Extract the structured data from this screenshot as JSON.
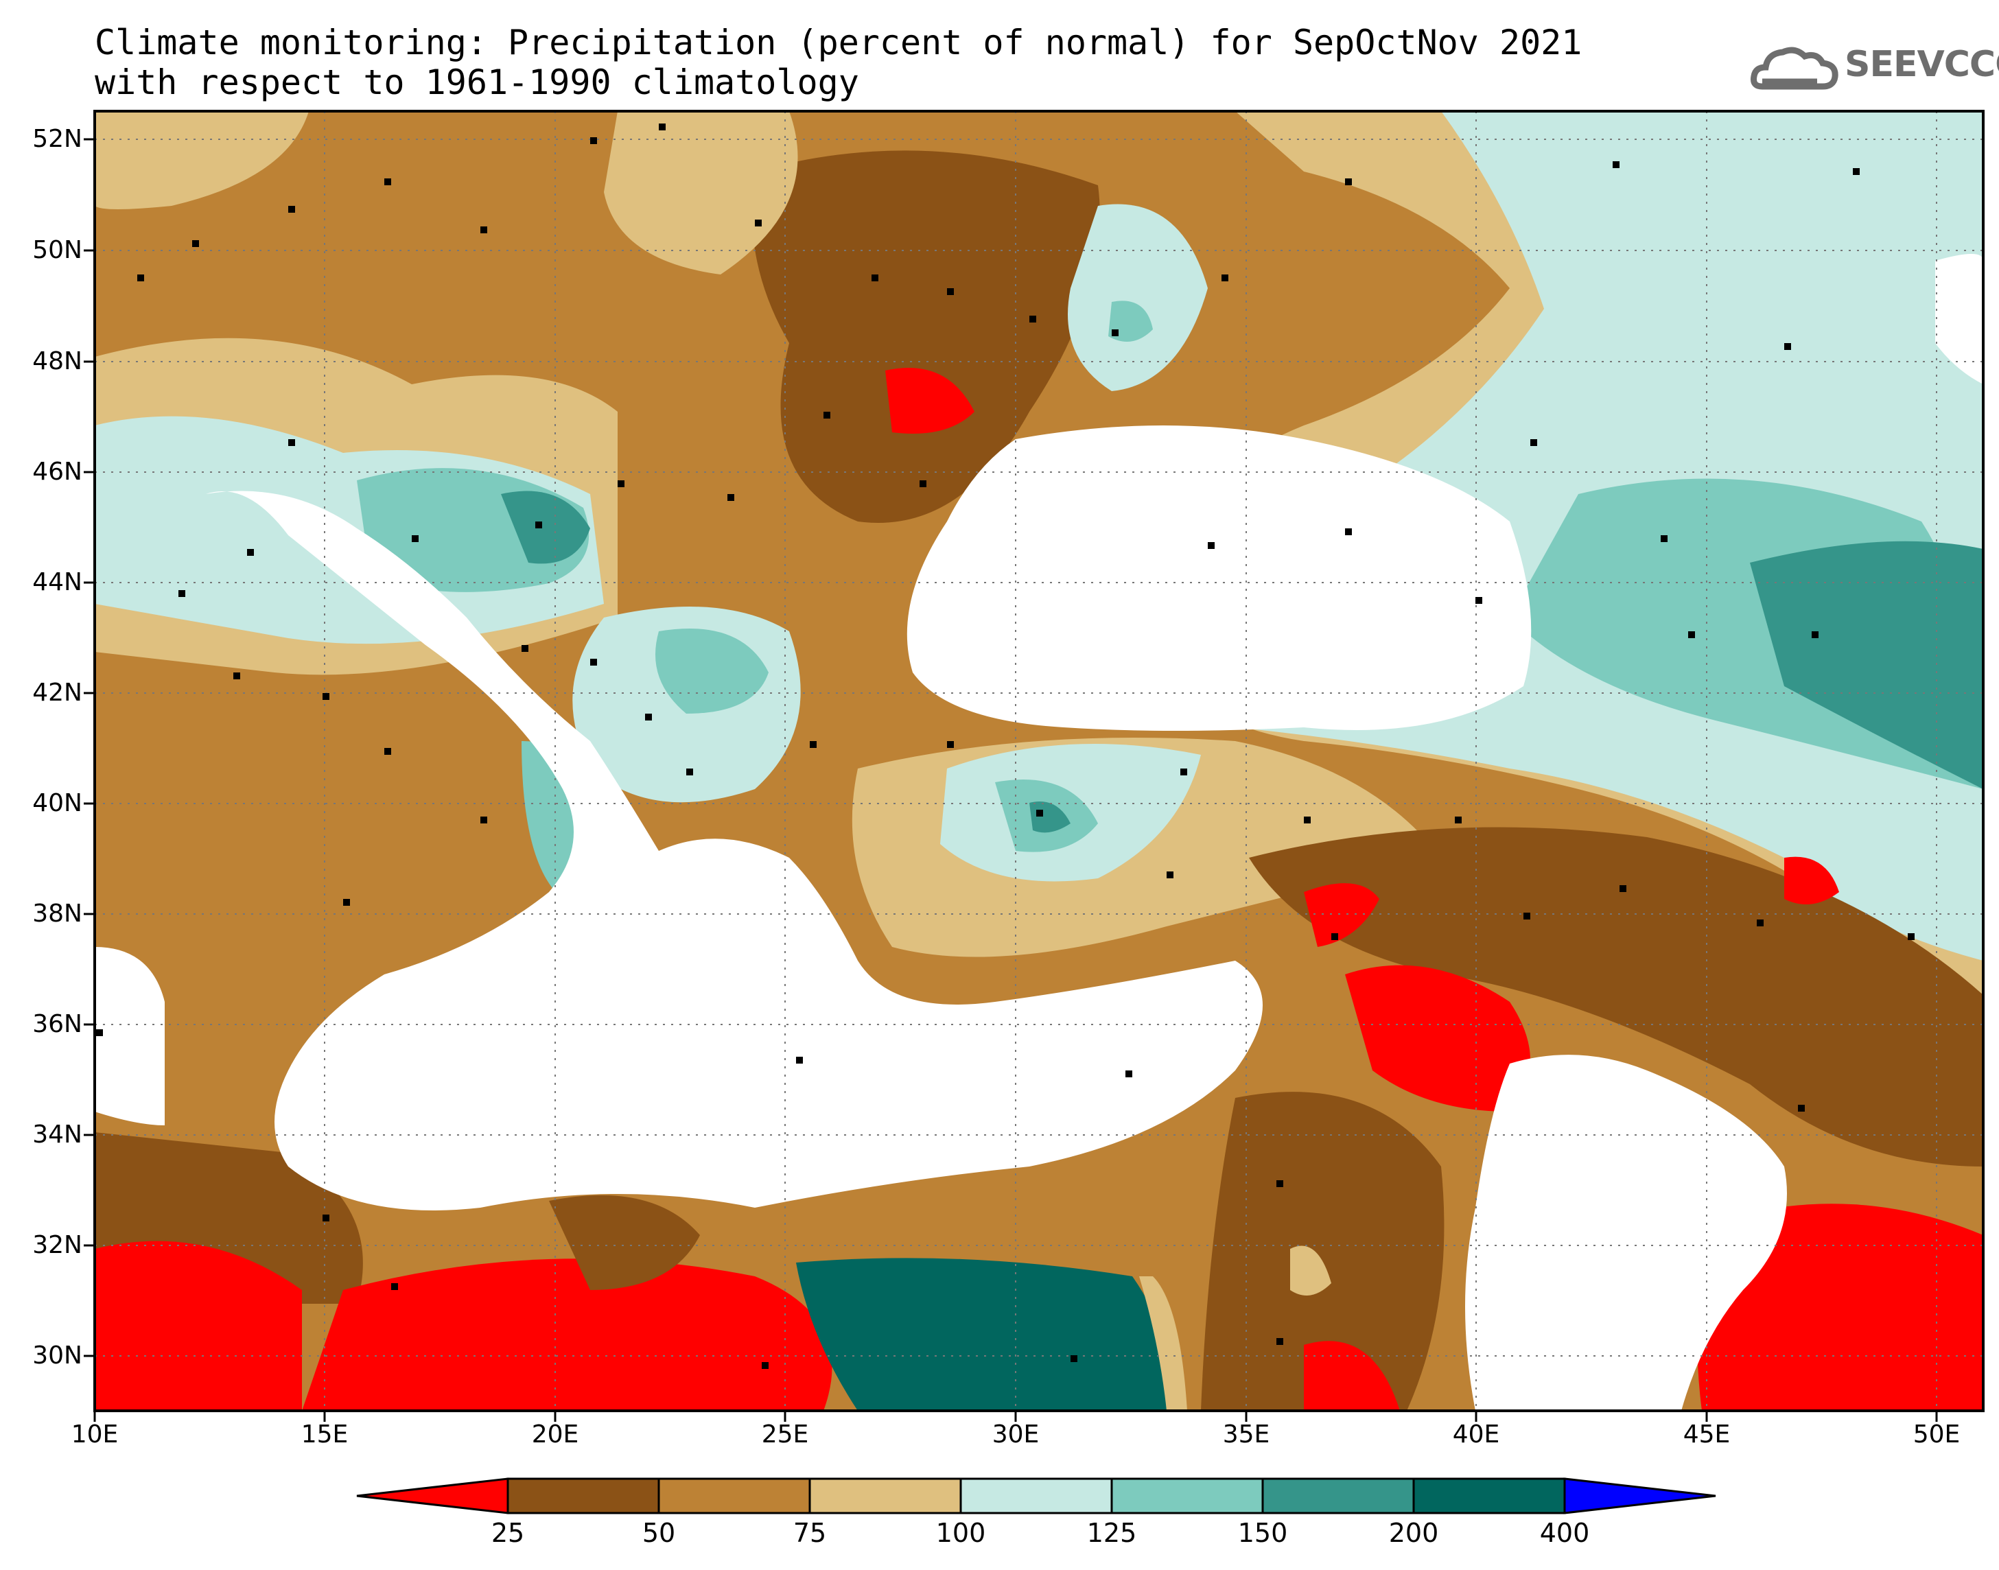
{
  "title": {
    "line1": "Climate monitoring: Precipitation (percent of normal) for SepOctNov 2021",
    "line2": "with respect to 1961-1990 climatology"
  },
  "logo": {
    "text": "SEEVCCC",
    "icon": "cloud-icon"
  },
  "map": {
    "lon_range": [
      10,
      51
    ],
    "lat_range": [
      29,
      52.5
    ],
    "lon_labels": [
      "10E",
      "15E",
      "20E",
      "25E",
      "30E",
      "35E",
      "40E",
      "45E",
      "50E"
    ],
    "lat_labels": [
      "52N",
      "50N",
      "48N",
      "46N",
      "44N",
      "42N",
      "40N",
      "38N",
      "36N",
      "34N",
      "32N",
      "30N"
    ],
    "gridlines": true
  },
  "colorbar": {
    "thresholds": [
      "25",
      "50",
      "75",
      "100",
      "125",
      "150",
      "200",
      "400"
    ],
    "colors": [
      "#ff0000",
      "#8b5216",
      "#bd8235",
      "#dfc07f",
      "#c6e9e3",
      "#7dcbbe",
      "#35958a",
      "#01665e",
      "#0000ff"
    ]
  }
}
